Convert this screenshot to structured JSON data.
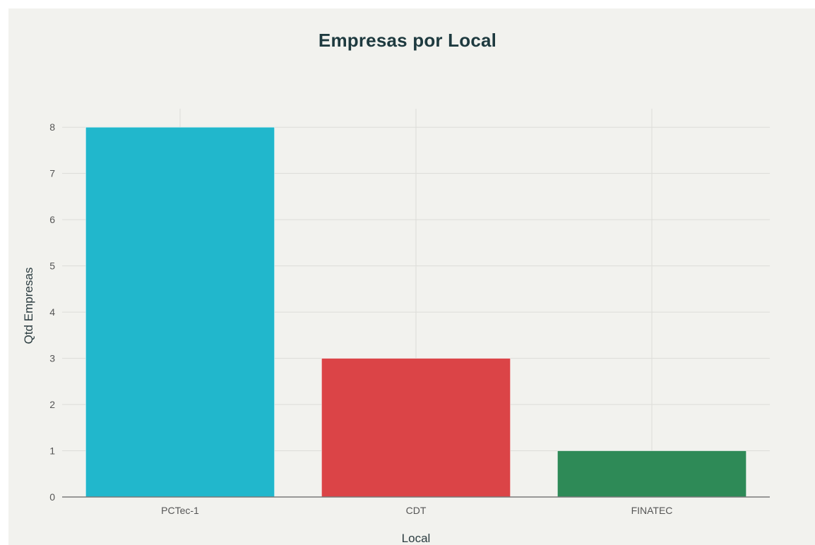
{
  "chart_data": {
    "type": "bar",
    "title": "Empresas por Local",
    "xlabel": "Local",
    "ylabel": "Qtd Empresas",
    "categories": [
      "PCTec-1",
      "CDT",
      "FINATEC"
    ],
    "values": [
      8,
      3,
      1
    ],
    "colors": [
      "#21b7cc",
      "#db4447",
      "#2e8a57"
    ],
    "ylim": [
      0,
      8.4
    ],
    "yticks": [
      "0",
      "1",
      "2",
      "3",
      "4",
      "5",
      "6",
      "7",
      "8"
    ],
    "grid": true,
    "legend": "none"
  }
}
